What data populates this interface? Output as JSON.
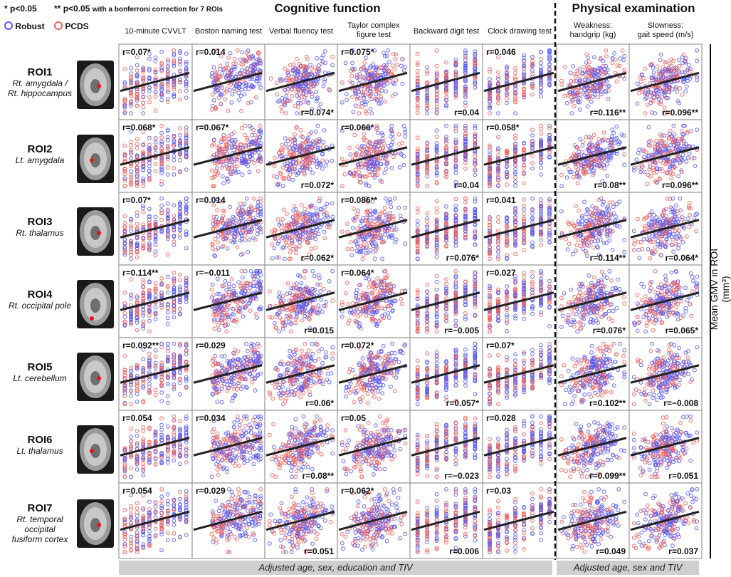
{
  "legend": {
    "sig1_mark": "*",
    "sig1_text": "p<0.05",
    "sig2_mark": "**",
    "sig2_text": "p<0.05",
    "sig2_note": "with a bonferroni correction for 7 ROIs",
    "robust_label": "Robust",
    "pcds_label": "PCDS"
  },
  "groups": {
    "cognitive": "Cognitive function",
    "physical": "Physical examination"
  },
  "columns": [
    {
      "label1": "10-minute CVVLT",
      "label2": ""
    },
    {
      "label1": "Boston naming test",
      "label2": ""
    },
    {
      "label1": "Verbal fluency test",
      "label2": ""
    },
    {
      "label1": "Taylor complex",
      "label2": "figure test"
    },
    {
      "label1": "Backward digit test",
      "label2": ""
    },
    {
      "label1": "Clock drawing test",
      "label2": ""
    },
    {
      "label1": "Weakness:",
      "label2": "handgrip (kg)"
    },
    {
      "label1": "Slowness:",
      "label2": "gait speed (m/s)"
    }
  ],
  "rows": [
    {
      "id": "ROI1",
      "name1": "Rt. amygdala /",
      "name2": "Rt. hippocampus",
      "name3": ""
    },
    {
      "id": "ROI2",
      "name1": "Lt. amygdala",
      "name2": "",
      "name3": ""
    },
    {
      "id": "ROI3",
      "name1": "Rt. thalamus",
      "name2": "",
      "name3": ""
    },
    {
      "id": "ROI4",
      "name1": "Rt. occipital pole",
      "name2": "",
      "name3": ""
    },
    {
      "id": "ROI5",
      "name1": "Lt. cerebellum",
      "name2": "",
      "name3": ""
    },
    {
      "id": "ROI6",
      "name1": "Lt. thalamus",
      "name2": "",
      "name3": ""
    },
    {
      "id": "ROI7",
      "name1": "Rt. temporal",
      "name2": "occipital",
      "name3": "fusiform cortex"
    }
  ],
  "y_axis_label": "Mean GMV in ROI (mm³)",
  "footers": {
    "cognitive": "Adjusted age, sex, education and TIV",
    "physical": "Adjusted age, sex and TIV"
  },
  "colors": {
    "robust": "#5a5cf0",
    "pcds": "#f0605a",
    "fit_line": "#222222"
  },
  "chart_data": {
    "type": "scatter",
    "series": [
      {
        "name": "Robust"
      },
      {
        "name": "PCDS"
      }
    ],
    "r_labels": [
      [
        "r=0.07*",
        "r=0.014",
        "r=0.074*",
        "r=0.075*",
        "r=0.04",
        "r=0.046",
        "r=0.116**",
        "r=0.096**"
      ],
      [
        "r=0.068*",
        "r=0.067*",
        "r=0.072*",
        "r=0.066*",
        "r=0.04",
        "r=0.058*",
        "r=0.08**",
        "r=0.096**"
      ],
      [
        "r=0.07*",
        "r=0.014",
        "r=0.062*",
        "r=0.086**",
        "r=0.076*",
        "r=0.041",
        "r=0.114**",
        "r=0.064*"
      ],
      [
        "r=0.114**",
        "r=−0.011",
        "r=0.015",
        "r=0.064*",
        "r=−0.005",
        "r=0.027",
        "r=0.076*",
        "r=0.065*"
      ],
      [
        "r=0.092**",
        "r=0.029",
        "r=0.06*",
        "r=0.072*",
        "r=0.057*",
        "r=0.07*",
        "r=0.102**",
        "r=−0.008"
      ],
      [
        "r=0.054",
        "r=0.034",
        "r=0.08**",
        "r=0.05",
        "r=−0.023",
        "r=0.028",
        "r=0.099**",
        "r=0.051"
      ],
      [
        "r=0.054",
        "r=0.029",
        "r=0.051",
        "r=0.062*",
        "r=0.006",
        "r=0.03",
        "r=0.049",
        "r=0.037"
      ]
    ],
    "r_position": [
      [
        "top",
        "top",
        "bottom",
        "top",
        "bottom",
        "top",
        "bottom",
        "bottom"
      ],
      [
        "top",
        "top",
        "bottom",
        "top",
        "bottom",
        "top",
        "bottom",
        "bottom"
      ],
      [
        "top",
        "top",
        "bottom",
        "top",
        "bottom",
        "top",
        "bottom",
        "bottom"
      ],
      [
        "top",
        "top",
        "bottom",
        "top",
        "bottom",
        "top",
        "bottom",
        "bottom"
      ],
      [
        "top",
        "top",
        "bottom",
        "top",
        "bottom",
        "top",
        "bottom",
        "bottom"
      ],
      [
        "top",
        "top",
        "bottom",
        "top",
        "bottom",
        "top",
        "bottom",
        "bottom"
      ],
      [
        "top",
        "top",
        "bottom",
        "top",
        "bottom",
        "top",
        "bottom",
        "bottom"
      ]
    ]
  }
}
